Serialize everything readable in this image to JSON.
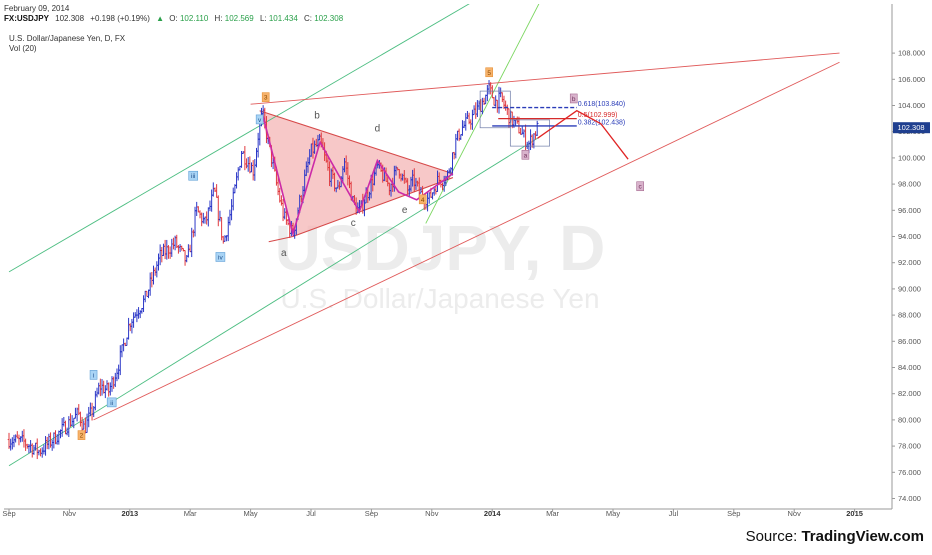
{
  "header": {
    "date": "February 09, 2014",
    "symbol_line_prefix": "FX:USDJPY",
    "last": "102.308",
    "change": "+0.198 (+0.19%)",
    "change_arrow": "▲",
    "ohlc": [
      {
        "k": "O:",
        "v": "102.110"
      },
      {
        "k": "H:",
        "v": "102.569"
      },
      {
        "k": "L:",
        "v": "101.434"
      },
      {
        "k": "C:",
        "v": "102.308"
      }
    ],
    "title": "U.S. Dollar/Japanese Yen, D, FX",
    "volume_label": "Vol (20)"
  },
  "watermark": {
    "symbol": "USDJPY, D",
    "name": "U.S. Dollar/Japanese Yen"
  },
  "price_tag": "102.308",
  "source": {
    "prefix": "Source: ",
    "brand": "TradingView.com"
  },
  "colors": {
    "up": "#2b37c7",
    "down": "#e0393e",
    "channel": "#4dbe82",
    "trendline": "#e05a5a",
    "triangle_fill": "#f4b6b6",
    "wave": "#cc2aa8",
    "fib": "#2a3cb8",
    "price_tag_bg": "#1f3f8f"
  },
  "chart_data": {
    "type": "line",
    "series_style": "ohlc",
    "y_axis": {
      "lim": [
        73.5,
        109.5
      ],
      "ticks": [
        "74.000",
        "76.000",
        "78.000",
        "80.000",
        "82.000",
        "84.000",
        "86.000",
        "88.000",
        "90.000",
        "92.000",
        "94.000",
        "96.000",
        "98.000",
        "100.000",
        "102.000",
        "104.000",
        "106.000",
        "108.000"
      ]
    },
    "x_axis": {
      "ticks": [
        {
          "label": "Sep",
          "t": 0.0,
          "bold": false
        },
        {
          "label": "Nov",
          "t": 2.0,
          "bold": false
        },
        {
          "label": "2013",
          "t": 4.0,
          "bold": true
        },
        {
          "label": "Mar",
          "t": 6.0,
          "bold": false
        },
        {
          "label": "May",
          "t": 8.0,
          "bold": false
        },
        {
          "label": "Jul",
          "t": 10.0,
          "bold": false
        },
        {
          "label": "Sep",
          "t": 12.0,
          "bold": false
        },
        {
          "label": "Nov",
          "t": 14.0,
          "bold": false
        },
        {
          "label": "2014",
          "t": 16.0,
          "bold": true
        },
        {
          "label": "Mar",
          "t": 18.0,
          "bold": false
        },
        {
          "label": "May",
          "t": 20.0,
          "bold": false
        },
        {
          "label": "Jul",
          "t": 22.0,
          "bold": false
        },
        {
          "label": "Sep",
          "t": 24.0,
          "bold": false
        },
        {
          "label": "Nov",
          "t": 26.0,
          "bold": false
        },
        {
          "label": "2015",
          "t": 28.0,
          "bold": true
        }
      ]
    },
    "price_path": [
      [
        0.0,
        78.5
      ],
      [
        0.5,
        78.3
      ],
      [
        1.0,
        77.6
      ],
      [
        1.5,
        78.6
      ],
      [
        2.0,
        79.8
      ],
      [
        2.3,
        80.5
      ],
      [
        2.5,
        79.3
      ],
      [
        2.8,
        81.0
      ],
      [
        3.0,
        82.6
      ],
      [
        3.3,
        82.2
      ],
      [
        3.6,
        84.0
      ],
      [
        4.0,
        87.5
      ],
      [
        4.5,
        89.2
      ],
      [
        5.0,
        92.5
      ],
      [
        5.5,
        93.5
      ],
      [
        5.9,
        92.0
      ],
      [
        6.2,
        96.0
      ],
      [
        6.5,
        95.0
      ],
      [
        6.8,
        97.5
      ],
      [
        7.1,
        93.5
      ],
      [
        7.4,
        96.5
      ],
      [
        7.7,
        100.5
      ],
      [
        8.1,
        99.0
      ],
      [
        8.3,
        102.6
      ],
      [
        8.4,
        103.3
      ],
      [
        8.6,
        101.0
      ],
      [
        8.9,
        97.5
      ],
      [
        9.1,
        95.5
      ],
      [
        9.4,
        94.2
      ],
      [
        9.7,
        97.5
      ],
      [
        10.0,
        100.5
      ],
      [
        10.3,
        101.2
      ],
      [
        10.6,
        98.8
      ],
      [
        10.9,
        97.5
      ],
      [
        11.1,
        99.8
      ],
      [
        11.4,
        96.5
      ],
      [
        11.6,
        95.9
      ],
      [
        11.9,
        97.5
      ],
      [
        12.2,
        99.3
      ],
      [
        12.6,
        97.8
      ],
      [
        12.9,
        99.3
      ],
      [
        13.2,
        97.5
      ],
      [
        13.4,
        98.3
      ],
      [
        13.6,
        97.3
      ],
      [
        13.9,
        96.8
      ],
      [
        14.2,
        98.3
      ],
      [
        14.5,
        98.5
      ],
      [
        14.8,
        101.3
      ],
      [
        15.0,
        102.3
      ],
      [
        15.3,
        103.0
      ],
      [
        15.6,
        104.0
      ],
      [
        15.9,
        105.2
      ],
      [
        16.1,
        104.3
      ],
      [
        16.3,
        104.5
      ],
      [
        16.6,
        103.0
      ],
      [
        16.9,
        102.2
      ],
      [
        17.2,
        101.0
      ],
      [
        17.5,
        102.3
      ]
    ],
    "drawings": {
      "triangle_fill": [
        [
          8.3,
          103.6
        ],
        [
          9.4,
          94.0
        ],
        [
          14.5,
          98.3
        ],
        [
          14.7,
          98.8
        ]
      ],
      "triangle_upper": [
        [
          8.3,
          103.6
        ],
        [
          14.7,
          98.8
        ]
      ],
      "triangle_lower": [
        [
          9.4,
          94.0
        ],
        [
          14.7,
          98.5
        ]
      ],
      "triangle_lower_ext": [
        [
          8.6,
          93.6
        ],
        [
          9.4,
          94.0
        ]
      ],
      "channel_upper": [
        [
          0.0,
          91.3
        ],
        [
          17.5,
          114.8
        ]
      ],
      "channel_lower": [
        [
          0.0,
          76.5
        ],
        [
          17.5,
          101.5
        ]
      ],
      "green_steep": [
        [
          13.8,
          95.0
        ],
        [
          17.6,
          112.0
        ]
      ],
      "wedge_upper": [
        [
          8.0,
          104.1
        ],
        [
          27.5,
          108.0
        ]
      ],
      "wedge_lower": [
        [
          2.8,
          80.0
        ],
        [
          27.5,
          107.3
        ]
      ],
      "fib_lines": [
        {
          "label": "0.618(103.840)",
          "v": 103.84,
          "t0": 16.0,
          "t1": 18.8,
          "dash": true
        },
        {
          "label": "0.5(102.999)",
          "v": 102.999,
          "t0": 16.2,
          "t1": 18.8,
          "dash": false
        },
        {
          "label": "0.382(102.438)",
          "v": 102.438,
          "t0": 16.0,
          "t1": 18.8,
          "dash": false
        }
      ],
      "projection": [
        [
          17.5,
          101.5
        ],
        [
          18.8,
          103.6
        ],
        [
          19.6,
          102.6
        ],
        [
          20.5,
          99.9
        ]
      ]
    },
    "wave_labels": [
      {
        "text": "a",
        "t": 9.1,
        "v": 92.5,
        "style": "plain"
      },
      {
        "text": "b",
        "t": 10.2,
        "v": 103.0,
        "style": "plain"
      },
      {
        "text": "c",
        "t": 11.4,
        "v": 94.8,
        "style": "plain"
      },
      {
        "text": "d",
        "t": 12.2,
        "v": 102.0,
        "style": "plain"
      },
      {
        "text": "e",
        "t": 13.1,
        "v": 95.8,
        "style": "plain"
      },
      {
        "text": "3",
        "t": 8.5,
        "v": 104.6,
        "style": "orange"
      },
      {
        "text": "4",
        "t": 13.7,
        "v": 96.8,
        "style": "orange"
      },
      {
        "text": "5",
        "t": 15.9,
        "v": 106.5,
        "style": "orange"
      },
      {
        "text": "2",
        "t": 2.4,
        "v": 78.8,
        "style": "orange"
      },
      {
        "text": "iii",
        "t": 6.1,
        "v": 98.6,
        "style": "blue"
      },
      {
        "text": "iv",
        "t": 7.0,
        "v": 92.4,
        "style": "blue"
      },
      {
        "text": "v",
        "t": 8.3,
        "v": 102.9,
        "style": "blue"
      },
      {
        "text": "i",
        "t": 2.8,
        "v": 83.4,
        "style": "blue"
      },
      {
        "text": "ii",
        "t": 3.4,
        "v": 81.3,
        "style": "blue"
      },
      {
        "text": "b",
        "t": 18.7,
        "v": 104.5,
        "style": "purple"
      },
      {
        "text": "a",
        "t": 17.1,
        "v": 100.2,
        "style": "purple"
      },
      {
        "text": "c",
        "t": 20.9,
        "v": 97.8,
        "style": "purple"
      }
    ]
  }
}
